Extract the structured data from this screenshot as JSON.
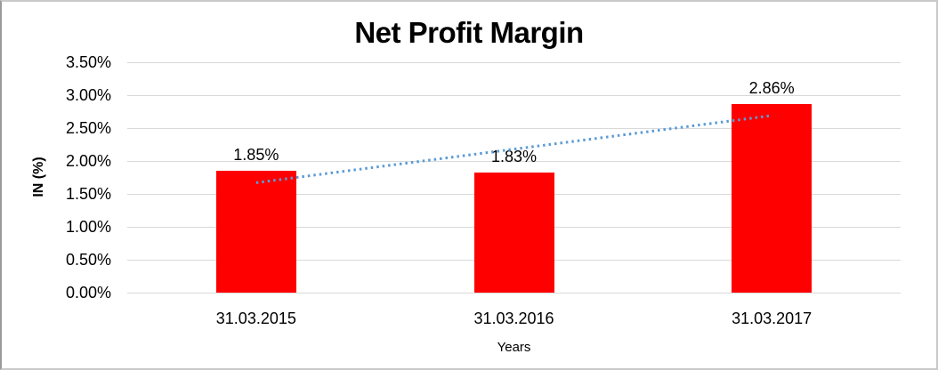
{
  "chart_data": {
    "type": "bar",
    "title": "Net Profit Margin",
    "xlabel": "Years",
    "ylabel": "IN (%)",
    "categories": [
      "31.03.2015",
      "31.03.2016",
      "31.03.2017"
    ],
    "values": [
      1.85,
      1.83,
      2.86
    ],
    "data_labels": [
      "1.85%",
      "1.83%",
      "2.86%"
    ],
    "y_ticks": [
      "3.50%",
      "3.00%",
      "2.50%",
      "2.00%",
      "1.50%",
      "1.00%",
      "0.50%",
      "0.00%"
    ],
    "ylim": [
      0,
      3.5
    ],
    "grid": true,
    "legend": "none",
    "bar_color": "#FF0000",
    "gridline_color": "#D9D9D9",
    "text_color": "#000000",
    "trendline": {
      "type": "linear",
      "style": "dotted",
      "color": "#5B9BD5",
      "start_value": 1.67,
      "end_value": 2.69
    }
  }
}
